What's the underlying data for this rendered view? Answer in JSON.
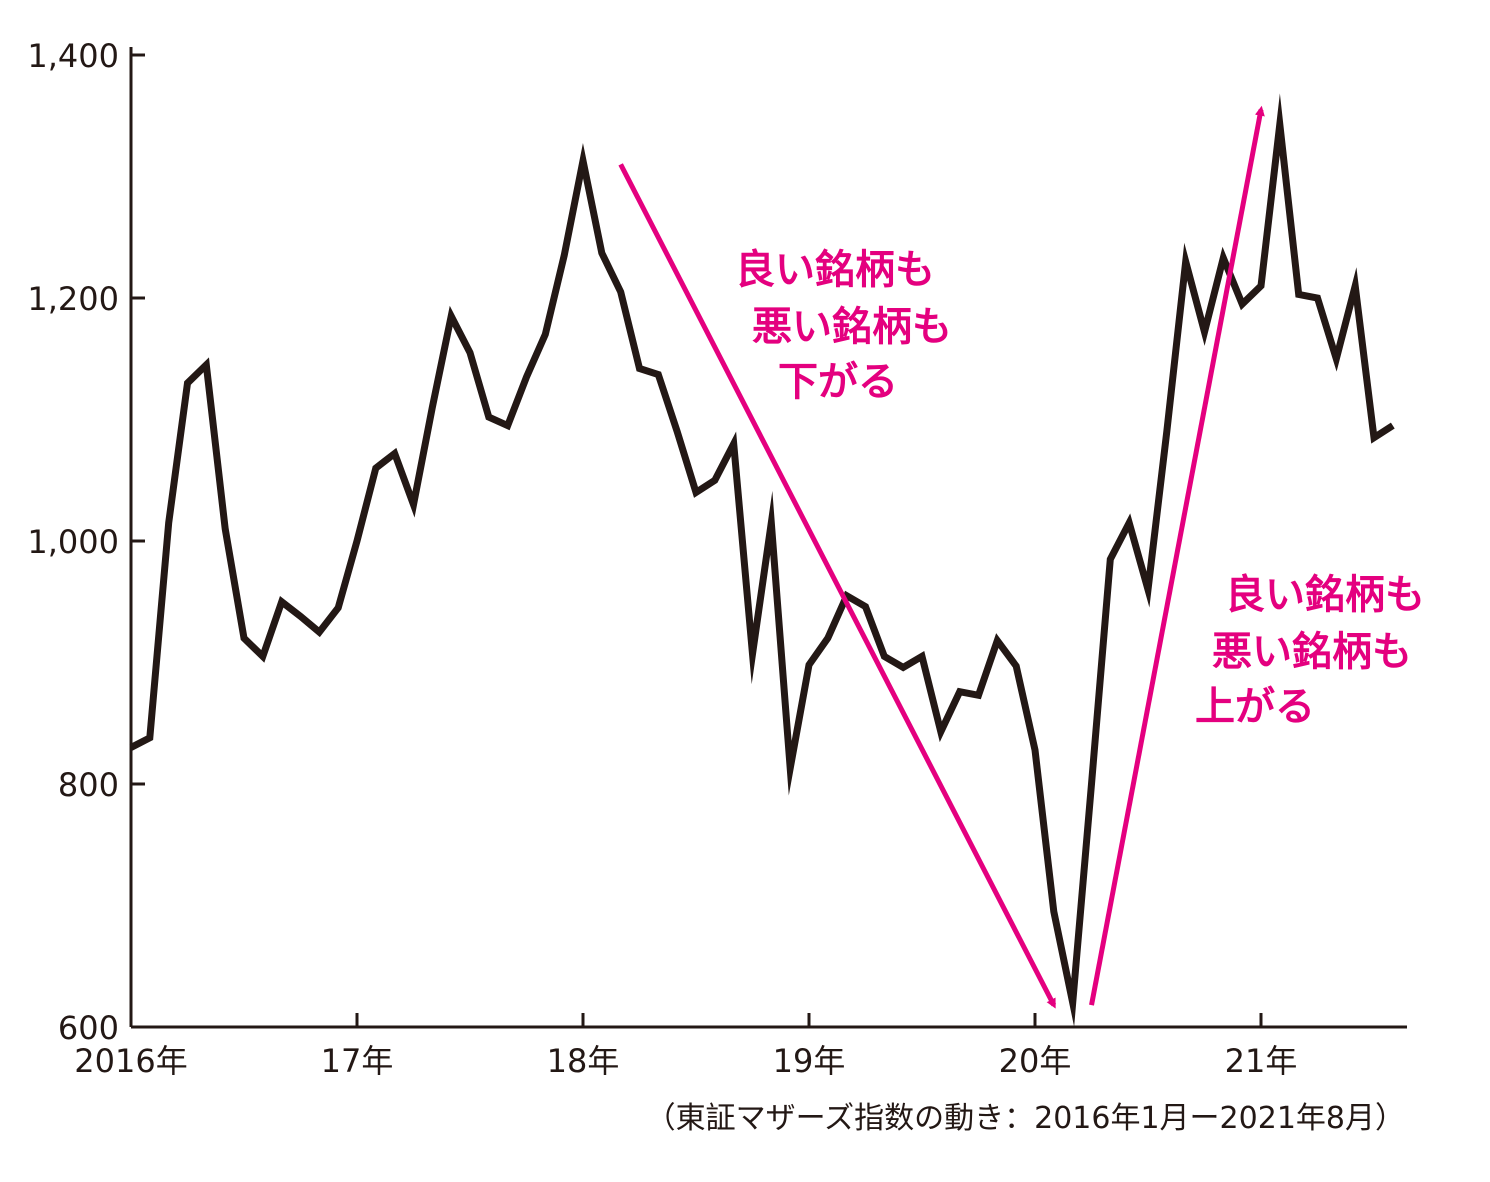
{
  "chart_data": {
    "type": "line",
    "caption": "（東証マザーズ指数の動き：2016年1月ー2021年8月）",
    "ylim": [
      600,
      1400
    ],
    "yticks": [
      600,
      800,
      1000,
      1200,
      1400
    ],
    "ytick_labels": [
      "600",
      "800",
      "1,000",
      "1,200",
      "1,400"
    ],
    "xticks": [
      {
        "x": 2016.0,
        "label": "2016年"
      },
      {
        "x": 2017.0,
        "label": "17年"
      },
      {
        "x": 2018.0,
        "label": "18年"
      },
      {
        "x": 2019.0,
        "label": "19年"
      },
      {
        "x": 2020.0,
        "label": "20年"
      },
      {
        "x": 2021.0,
        "label": "21年"
      }
    ],
    "xlim": [
      2016.0,
      2021.667
    ],
    "grid": false,
    "series": [
      {
        "color": "#231815",
        "x": [
          "2016-01",
          "2016-02",
          "2016-03",
          "2016-04",
          "2016-05",
          "2016-06",
          "2016-07",
          "2016-08",
          "2016-09",
          "2016-10",
          "2016-11",
          "2016-12",
          "2017-01",
          "2017-02",
          "2017-03",
          "2017-04",
          "2017-05",
          "2017-06",
          "2017-07",
          "2017-08",
          "2017-09",
          "2017-10",
          "2017-11",
          "2017-12",
          "2018-01",
          "2018-02",
          "2018-03",
          "2018-04",
          "2018-05",
          "2018-06",
          "2018-07",
          "2018-08",
          "2018-09",
          "2018-10",
          "2018-11",
          "2018-12",
          "2019-01",
          "2019-02",
          "2019-03",
          "2019-04",
          "2019-05",
          "2019-06",
          "2019-07",
          "2019-08",
          "2019-09",
          "2019-10",
          "2019-11",
          "2019-12",
          "2020-01",
          "2020-02",
          "2020-03",
          "2020-04",
          "2020-05",
          "2020-06",
          "2020-07",
          "2020-08",
          "2020-09",
          "2020-10",
          "2020-11",
          "2020-12",
          "2021-01",
          "2021-02",
          "2021-03",
          "2021-04",
          "2021-05",
          "2021-06",
          "2021-07",
          "2021-08"
        ],
        "values": [
          830,
          838,
          1015,
          1130,
          1145,
          1010,
          920,
          905,
          950,
          938,
          925,
          945,
          1000,
          1060,
          1072,
          1030,
          1110,
          1185,
          1155,
          1102,
          1095,
          1135,
          1170,
          1235,
          1313,
          1237,
          1205,
          1142,
          1137,
          1090,
          1040,
          1050,
          1080,
          907,
          1015,
          813,
          898,
          920,
          955,
          946,
          905,
          896,
          905,
          843,
          876,
          873,
          918,
          897,
          828,
          695,
          620,
          800,
          985,
          1015,
          960,
          1090,
          1230,
          1172,
          1233,
          1195,
          1210,
          1343,
          1203,
          1200,
          1150,
          1210,
          1085,
          1095
        ]
      }
    ],
    "annotations": [
      {
        "lines": [
          "良い銘柄も",
          "悪い銘柄も",
          "下がる"
        ],
        "color": "#e4007f"
      },
      {
        "lines": [
          "良い銘柄も",
          "悪い銘柄も",
          "上がる"
        ],
        "color": "#e4007f"
      }
    ],
    "arrows": [
      {
        "from": {
          "x": "2018-03",
          "y": 1310
        },
        "to": {
          "x": "2020-02",
          "y": 618
        },
        "color": "#e4007f"
      },
      {
        "from": {
          "x": "2020-04",
          "y": 618
        },
        "to": {
          "x": "2021-01",
          "y": 1355
        },
        "color": "#e4007f"
      }
    ]
  }
}
